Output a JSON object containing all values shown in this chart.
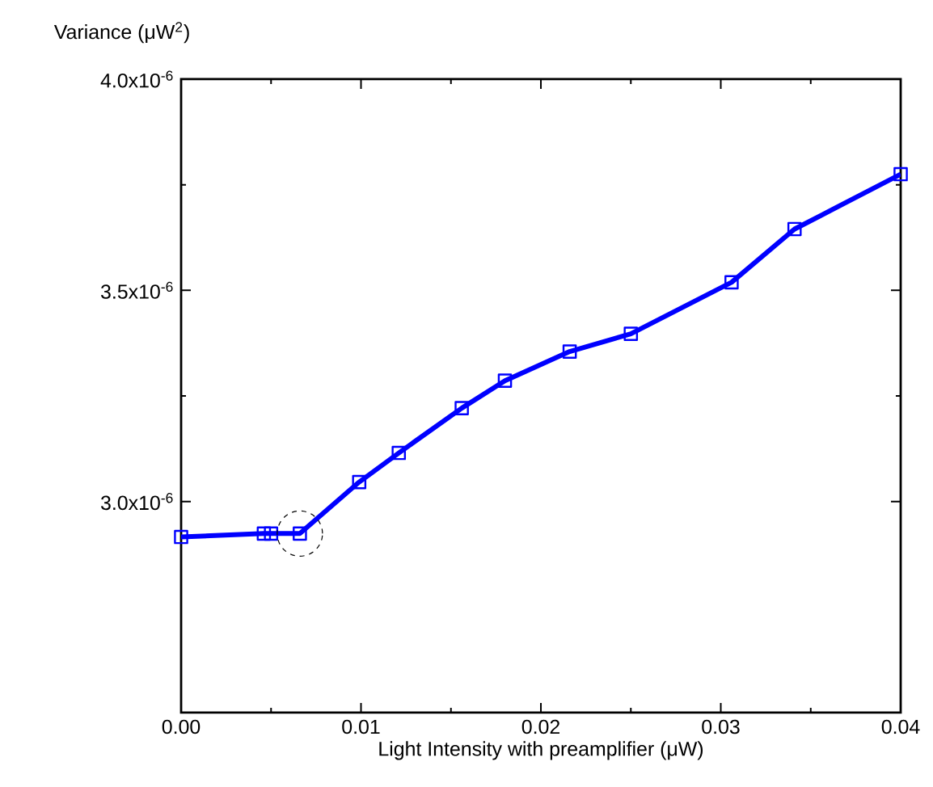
{
  "chart_data": {
    "type": "line",
    "xlabel": "Light Intensity with preamplifier (μW)",
    "ylabel": "Variance (μW$^{2}$)",
    "series": [
      {
        "color": "#0000ff",
        "x": [
          0,
          0.0046,
          0.005,
          0.0066,
          0.0099,
          0.0121,
          0.0156,
          0.018,
          0.0216,
          0.025,
          0.0306,
          0.0341,
          0.04
        ],
        "values": [
          2.916e-06,
          2.924e-06,
          2.924e-06,
          2.924e-06,
          3.046e-06,
          3.115e-06,
          3.221e-06,
          3.286e-06,
          3.355e-06,
          3.397e-06,
          3.519e-06,
          3.645e-06,
          3.775e-06
        ]
      }
    ],
    "xlim": [
      0,
      0.04
    ],
    "ylim": [
      2.5e-06,
      4e-06
    ],
    "xticks": [
      {
        "value": 0,
        "label": "0.00"
      },
      {
        "value": 0.01,
        "label": "0.01"
      },
      {
        "value": 0.02,
        "label": "0.02"
      },
      {
        "value": 0.03,
        "label": "0.03"
      },
      {
        "value": 0.04,
        "label": "0.04"
      }
    ],
    "yticks": [
      {
        "value": 3e-06,
        "label": "3.0x10$^{-6}$"
      },
      {
        "value": 3.5e-06,
        "label": "3.5x10$^{-6}$"
      },
      {
        "value": 4e-06,
        "label": "4.0x10$^{-6}$"
      }
    ],
    "marker": "square",
    "line_style": "solid"
  }
}
